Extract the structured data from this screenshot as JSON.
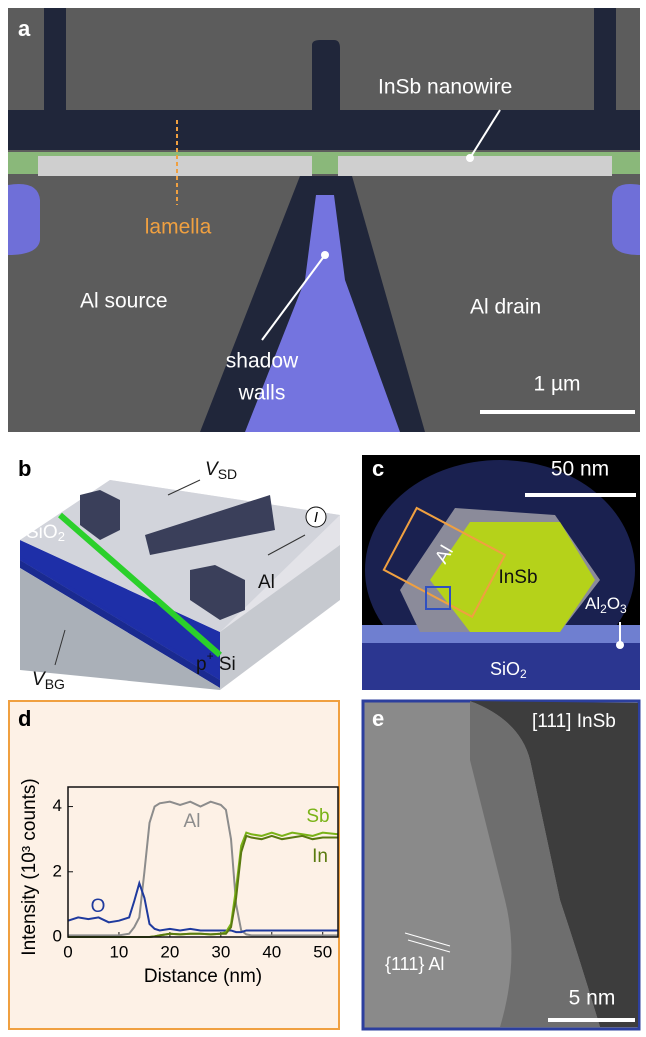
{
  "panel_a": {
    "label": "a",
    "wire": "InSb nanowire",
    "lamella": "lamella",
    "source": "Al source",
    "drain": "Al drain",
    "walls": [
      "shadow",
      "walls"
    ],
    "scale": "1 µm"
  },
  "panel_b": {
    "label": "b",
    "vsd": {
      "symbol": "V",
      "subscript": "SD"
    },
    "current": "I",
    "oxide": {
      "text": "SiO",
      "subscript": "2"
    },
    "metal": "Al",
    "vbg": {
      "symbol": "V",
      "subscript": "BG"
    },
    "substrate": {
      "text": "p",
      "superscript": "+",
      "rest": " Si"
    }
  },
  "panel_c": {
    "label": "c",
    "scale": "50 nm",
    "shell": "Al",
    "core": "InSb",
    "alox": {
      "a": "Al",
      "a_sub": "2",
      "b": "O",
      "b_sub": "3"
    },
    "oxide": {
      "text": "SiO",
      "subscript": "2"
    }
  },
  "panel_e": {
    "label": "e",
    "zone": "[111] InSb",
    "planes": "{111} Al",
    "scale": "5 nm"
  },
  "chart_data": {
    "type": "line",
    "label": "d",
    "x_label": "Distance (nm)",
    "y_label": "Intensity (10³ counts)",
    "x": [
      0,
      2,
      4,
      6,
      8,
      10,
      12,
      13,
      14,
      15,
      16,
      17,
      18,
      20,
      22,
      24,
      26,
      28,
      30,
      31,
      32,
      33,
      34,
      35,
      36,
      38,
      40,
      42,
      44,
      46,
      48,
      50,
      53
    ],
    "series": [
      {
        "name": "Al",
        "color": "#8c8c8c",
        "values": [
          0.05,
          0.05,
          0.05,
          0.05,
          0.05,
          0.05,
          0.1,
          0.3,
          0.6,
          2.0,
          3.5,
          4.0,
          4.1,
          4.15,
          4.05,
          4.15,
          4.0,
          4.15,
          4.05,
          3.9,
          3.0,
          1.0,
          0.2,
          0.08,
          0.05,
          0.05,
          0.05,
          0.05,
          0.05,
          0.05,
          0.05,
          0.05,
          0.05
        ]
      },
      {
        "name": "O",
        "color": "#1f3a9e",
        "values": [
          0.5,
          0.6,
          0.55,
          0.6,
          0.45,
          0.5,
          0.6,
          1.1,
          1.65,
          1.2,
          0.4,
          0.25,
          0.2,
          0.25,
          0.2,
          0.25,
          0.2,
          0.2,
          0.2,
          0.2,
          0.2,
          0.15,
          0.15,
          0.2,
          0.2,
          0.2,
          0.2,
          0.2,
          0.2,
          0.2,
          0.2,
          0.2,
          0.2
        ]
      },
      {
        "name": "Sb",
        "color": "#7ab317",
        "values": [
          0,
          0,
          0,
          0,
          0,
          0,
          0,
          0,
          0,
          0,
          0,
          0.02,
          0.05,
          0.1,
          0.08,
          0.1,
          0.1,
          0.08,
          0.1,
          0.15,
          0.4,
          1.5,
          2.8,
          3.2,
          3.15,
          3.1,
          3.2,
          3.1,
          3.2,
          3.15,
          3.1,
          3.2,
          3.15
        ]
      },
      {
        "name": "In",
        "color": "#5a7a10",
        "values": [
          0,
          0,
          0,
          0,
          0,
          0,
          0,
          0,
          0,
          0,
          0,
          0.02,
          0.05,
          0.1,
          0.08,
          0.1,
          0.1,
          0.08,
          0.1,
          0.1,
          0.3,
          1.2,
          2.6,
          3.1,
          3.05,
          3.0,
          3.1,
          3.0,
          3.05,
          3.1,
          3.0,
          3.05,
          3.05
        ]
      }
    ],
    "xlim": [
      0,
      53
    ],
    "ylim": [
      0,
      4.6
    ],
    "xticks": [
      0,
      10,
      20,
      30,
      40,
      50
    ],
    "yticks": [
      0,
      2,
      4
    ]
  }
}
